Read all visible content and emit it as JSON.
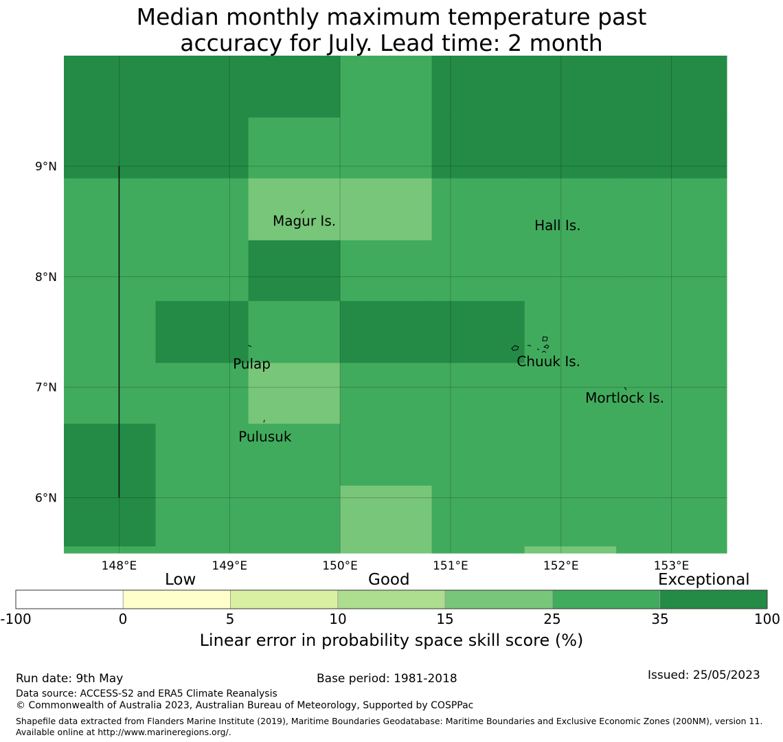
{
  "title_line1": "Median monthly maximum temperature past",
  "title_line2": "accuracy for July. Lead time: 2 month",
  "colors": {
    "exceptional": "#238b45",
    "very_good": "#41ab5d",
    "good": "#78c679",
    "c_10_15": "#addd8e",
    "c_5_10": "#d9f0a3",
    "c_0_5": "#ffffcc",
    "negative": "#ffffff"
  },
  "map": {
    "lon_range": [
      147.5,
      153.5
    ],
    "lat_range": [
      5.5,
      10.0
    ],
    "lon_ticks": [
      {
        "value": 148,
        "label": "148°E"
      },
      {
        "value": 149,
        "label": "149°E"
      },
      {
        "value": 150,
        "label": "150°E"
      },
      {
        "value": 151,
        "label": "151°E"
      },
      {
        "value": 152,
        "label": "152°E"
      },
      {
        "value": 153,
        "label": "153°E"
      }
    ],
    "lat_ticks": [
      {
        "value": 9,
        "label": "9°N"
      },
      {
        "value": 8,
        "label": "8°N"
      },
      {
        "value": 7,
        "label": "7°N"
      },
      {
        "value": 6,
        "label": "6°N"
      }
    ],
    "grid_lon_edges": [
      147.5,
      148.33,
      149.17,
      150.0,
      150.83,
      151.67,
      152.5,
      153.5
    ],
    "grid_lat_edges": [
      10.0,
      9.44,
      8.89,
      8.33,
      7.78,
      7.22,
      6.67,
      6.11,
      5.56,
      5.5
    ],
    "cells": [
      [
        "exceptional",
        "exceptional",
        "exceptional",
        "very_good",
        "exceptional",
        "exceptional",
        "exceptional"
      ],
      [
        "exceptional",
        "exceptional",
        "very_good",
        "very_good",
        "exceptional",
        "exceptional",
        "exceptional"
      ],
      [
        "very_good",
        "very_good",
        "good",
        "good",
        "very_good",
        "very_good",
        "very_good"
      ],
      [
        "very_good",
        "very_good",
        "exceptional",
        "very_good",
        "very_good",
        "very_good",
        "very_good"
      ],
      [
        "very_good",
        "exceptional",
        "very_good",
        "exceptional",
        "exceptional",
        "very_good",
        "very_good"
      ],
      [
        "very_good",
        "very_good",
        "good",
        "very_good",
        "very_good",
        "very_good",
        "very_good"
      ],
      [
        "exceptional",
        "very_good",
        "very_good",
        "very_good",
        "very_good",
        "very_good",
        "very_good"
      ],
      [
        "exceptional",
        "very_good",
        "very_good",
        "good",
        "very_good",
        "very_good",
        "very_good"
      ],
      [
        "very_good",
        "very_good",
        "very_good",
        "good",
        "very_good",
        "good",
        "very_good"
      ]
    ],
    "boundary_line": {
      "lon": 148.0,
      "lat_from": 6.0,
      "lat_to": 9.0
    },
    "places": [
      {
        "name": "Magur Is.",
        "lon": 149.39,
        "lat": 8.51
      },
      {
        "name": "Hall Is.",
        "lon": 151.76,
        "lat": 8.47
      },
      {
        "name": "Pulap",
        "lon": 149.03,
        "lat": 7.22
      },
      {
        "name": "Chuuk Is.",
        "lon": 151.6,
        "lat": 7.24
      },
      {
        "name": "Mortlock Is.",
        "lon": 152.22,
        "lat": 6.91
      },
      {
        "name": "Pulusuk",
        "lon": 149.08,
        "lat": 6.56
      }
    ]
  },
  "colorbar": {
    "category_labels": [
      "Low",
      "Good",
      "Exceptional"
    ],
    "ticks": [
      "-100",
      "0",
      "5",
      "10",
      "15",
      "25",
      "35",
      "100"
    ],
    "segments": [
      "negative",
      "c_0_5",
      "c_5_10",
      "c_10_15",
      "good",
      "very_good",
      "exceptional"
    ],
    "title": "Linear error in probability space skill score (%)"
  },
  "footer": {
    "run_date": "Run date: 9th May",
    "base_period": "Base period: 1981-2018",
    "issued": "Issued: 25/05/2023",
    "data_source": "Data source: ACCESS-S2 and ERA5 Climate Reanalysis",
    "copyright": "© Commonwealth of Australia 2023, Australian Bureau of Meteorology, Supported by COSPPac",
    "shapefile": "Shapefile data extracted from Flanders Marine Institute (2019), Maritime Boundaries Geodatabase: Maritime Boundaries and Exclusive Economic Zones (200NM), version 11. Available online at http://www.marineregions.org/."
  }
}
